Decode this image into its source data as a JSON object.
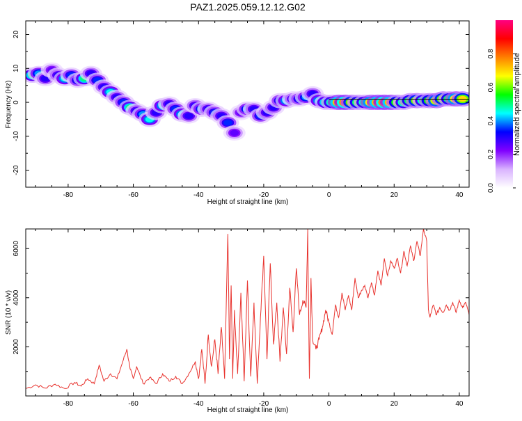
{
  "title": "PAZ1.2025.059.12.12.G02",
  "chart_data": [
    {
      "type": "heatmap",
      "xlabel": "Height of straight line (km)",
      "ylabel": "Frequency (Hz)",
      "xlim": [
        -93,
        43
      ],
      "ylim": [
        -25,
        24
      ],
      "x_ticks": [
        -80,
        -60,
        -40,
        -20,
        0,
        20,
        40
      ],
      "y_ticks": [
        -20,
        -10,
        0,
        10,
        20
      ],
      "colorbar": {
        "label": "Normalized spectral amplitude",
        "range": [
          0,
          1
        ],
        "ticks": [
          0.0,
          0.2,
          0.4,
          0.6,
          0.8
        ],
        "tick_labels": [
          "0.0",
          "0.2",
          "0.4",
          "0.6",
          "0.8"
        ],
        "colors": [
          "#ffffff",
          "#d9b3ff",
          "#8000ff",
          "#0000ff",
          "#00ffff",
          "#00ff00",
          "#ffff00",
          "#ff8000",
          "#ff0000",
          "#ff0080"
        ]
      },
      "ridge": [
        {
          "x": -91,
          "y": 8,
          "a": 0.5
        },
        {
          "x": -89,
          "y": 8.5,
          "a": 0.4
        },
        {
          "x": -87,
          "y": 7,
          "a": 0.3
        },
        {
          "x": -85,
          "y": 9.5,
          "a": 0.25
        },
        {
          "x": -83,
          "y": 8,
          "a": 0.3
        },
        {
          "x": -81,
          "y": 7,
          "a": 0.45
        },
        {
          "x": -79,
          "y": 8,
          "a": 0.35
        },
        {
          "x": -77,
          "y": 6.5,
          "a": 0.35
        },
        {
          "x": -75,
          "y": 7,
          "a": 0.5
        },
        {
          "x": -73,
          "y": 8.5,
          "a": 0.3
        },
        {
          "x": -71,
          "y": 6.5,
          "a": 0.35
        },
        {
          "x": -69,
          "y": 4.5,
          "a": 0.3
        },
        {
          "x": -67,
          "y": 3,
          "a": 0.45
        },
        {
          "x": -65,
          "y": 1.5,
          "a": 0.3
        },
        {
          "x": -63,
          "y": 0,
          "a": 0.35
        },
        {
          "x": -61,
          "y": -1.5,
          "a": 0.5
        },
        {
          "x": -59,
          "y": -2.5,
          "a": 0.3
        },
        {
          "x": -57,
          "y": -3.5,
          "a": 0.4
        },
        {
          "x": -55,
          "y": -5,
          "a": 0.45
        },
        {
          "x": -53,
          "y": -3,
          "a": 0.3
        },
        {
          "x": -51,
          "y": -1,
          "a": 0.45
        },
        {
          "x": -49,
          "y": -0.5,
          "a": 0.3
        },
        {
          "x": -47,
          "y": -2,
          "a": 0.35
        },
        {
          "x": -45,
          "y": -3.5,
          "a": 0.45
        },
        {
          "x": -43,
          "y": -4,
          "a": 0.3
        },
        {
          "x": -41,
          "y": -1,
          "a": 0.3
        },
        {
          "x": -39,
          "y": -2,
          "a": 0.4
        },
        {
          "x": -37,
          "y": -2,
          "a": 0.3
        },
        {
          "x": -35,
          "y": -3,
          "a": 0.35
        },
        {
          "x": -33,
          "y": -4,
          "a": 0.3
        },
        {
          "x": -31,
          "y": -6,
          "a": 0.35
        },
        {
          "x": -29,
          "y": -9,
          "a": 0.25
        },
        {
          "x": -27,
          "y": -3,
          "a": 0.25
        },
        {
          "x": -25,
          "y": -2,
          "a": 0.4
        },
        {
          "x": -23,
          "y": -2,
          "a": 0.3
        },
        {
          "x": -21,
          "y": -4,
          "a": 0.35
        },
        {
          "x": -19,
          "y": -3,
          "a": 0.3
        },
        {
          "x": -17,
          "y": -1.5,
          "a": 0.3
        },
        {
          "x": -15,
          "y": 0.5,
          "a": 0.35
        },
        {
          "x": -13,
          "y": 0.5,
          "a": 0.45
        },
        {
          "x": -11,
          "y": 1,
          "a": 0.3
        },
        {
          "x": -9,
          "y": 1,
          "a": 0.35
        },
        {
          "x": -7,
          "y": 1.5,
          "a": 0.4
        },
        {
          "x": -5,
          "y": 2.5,
          "a": 0.3
        },
        {
          "x": -3,
          "y": 0.5,
          "a": 0.45
        },
        {
          "x": -1,
          "y": 0,
          "a": 0.5
        },
        {
          "x": 1,
          "y": 0,
          "a": 0.55
        },
        {
          "x": 3,
          "y": 0,
          "a": 0.85
        },
        {
          "x": 5,
          "y": 0,
          "a": 0.9
        },
        {
          "x": 7,
          "y": 0,
          "a": 0.7
        },
        {
          "x": 9,
          "y": 0,
          "a": 0.6
        },
        {
          "x": 11,
          "y": 0,
          "a": 0.55
        },
        {
          "x": 13,
          "y": 0,
          "a": 0.8
        },
        {
          "x": 15,
          "y": 0,
          "a": 0.85
        },
        {
          "x": 17,
          "y": 0,
          "a": 0.9
        },
        {
          "x": 19,
          "y": 0,
          "a": 0.85
        },
        {
          "x": 21,
          "y": 0,
          "a": 0.65
        },
        {
          "x": 23,
          "y": 0,
          "a": 0.55
        },
        {
          "x": 25,
          "y": 0.5,
          "a": 0.6
        },
        {
          "x": 27,
          "y": 0.5,
          "a": 0.7
        },
        {
          "x": 29,
          "y": 0.5,
          "a": 0.55
        },
        {
          "x": 31,
          "y": 0.5,
          "a": 0.65
        },
        {
          "x": 33,
          "y": 0.5,
          "a": 0.75
        },
        {
          "x": 35,
          "y": 1,
          "a": 0.7
        },
        {
          "x": 37,
          "y": 1,
          "a": 0.6
        },
        {
          "x": 39,
          "y": 1,
          "a": 0.8
        },
        {
          "x": 41,
          "y": 1,
          "a": 0.7
        }
      ]
    },
    {
      "type": "line",
      "xlabel": "Height of straight line (km)",
      "ylabel": "SNR (10 * v/v)",
      "xlim": [
        -93,
        43
      ],
      "ylim": [
        0,
        6800
      ],
      "x_ticks": [
        -80,
        -60,
        -40,
        -20,
        0,
        20,
        40
      ],
      "y_ticks": [
        2000,
        4000,
        6000
      ],
      "series": [
        {
          "color": "#e8322d",
          "x": [
            -93,
            -90,
            -87,
            -84,
            -81,
            -78,
            -76,
            -74,
            -72,
            -70.5,
            -69,
            -67,
            -65,
            -63,
            -62,
            -61,
            -60,
            -59,
            -57,
            -55,
            -53,
            -51,
            -49,
            -47,
            -45,
            -43,
            -41,
            -40,
            -39,
            -38,
            -37,
            -36,
            -35,
            -34,
            -33,
            -32,
            -31,
            -30.5,
            -30,
            -29.5,
            -29,
            -28,
            -27,
            -26,
            -25,
            -24,
            -23,
            -22,
            -21,
            -20,
            -19,
            -18,
            -17,
            -16,
            -15,
            -14,
            -13,
            -12,
            -11,
            -10,
            -9,
            -8,
            -7,
            -6.5,
            -6,
            -5.5,
            -5,
            -4,
            -3,
            -2,
            -1,
            0,
            1,
            2,
            3,
            4,
            5,
            6,
            7,
            8,
            9,
            10,
            11,
            12,
            13,
            14,
            15,
            16,
            17,
            18,
            19,
            20,
            21,
            22,
            23,
            24,
            25,
            26,
            27,
            28,
            29,
            30,
            30.5,
            31,
            32,
            33,
            34,
            35,
            36,
            37,
            38,
            39,
            40,
            41,
            42,
            43
          ],
          "y": [
            300,
            450,
            320,
            480,
            300,
            550,
            400,
            700,
            500,
            1250,
            600,
            900,
            700,
            1500,
            1900,
            1100,
            700,
            1200,
            500,
            750,
            500,
            900,
            600,
            800,
            500,
            900,
            1400,
            700,
            1900,
            500,
            2500,
            1200,
            2300,
            900,
            2800,
            700,
            6600,
            1500,
            4500,
            700,
            3500,
            900,
            4200,
            600,
            4700,
            800,
            3800,
            500,
            3200,
            5700,
            1500,
            5400,
            2100,
            3800,
            1400,
            3600,
            1700,
            4400,
            2600,
            5200,
            3300,
            3900,
            3600,
            6800,
            700,
            4800,
            2300,
            1900,
            2300,
            2800,
            3500,
            3000,
            2500,
            3700,
            3200,
            4200,
            3500,
            4100,
            3500,
            4800,
            4000,
            4300,
            4500,
            4000,
            4600,
            4100,
            5100,
            4500,
            5600,
            4900,
            5500,
            5200,
            5600,
            5000,
            5900,
            5300,
            6100,
            5500,
            6300,
            5700,
            6800,
            6300,
            3500,
            3200,
            3700,
            3300,
            3600,
            3400,
            3700,
            3500,
            3800,
            3400,
            3900,
            3600,
            3800,
            3300
          ]
        }
      ]
    }
  ]
}
